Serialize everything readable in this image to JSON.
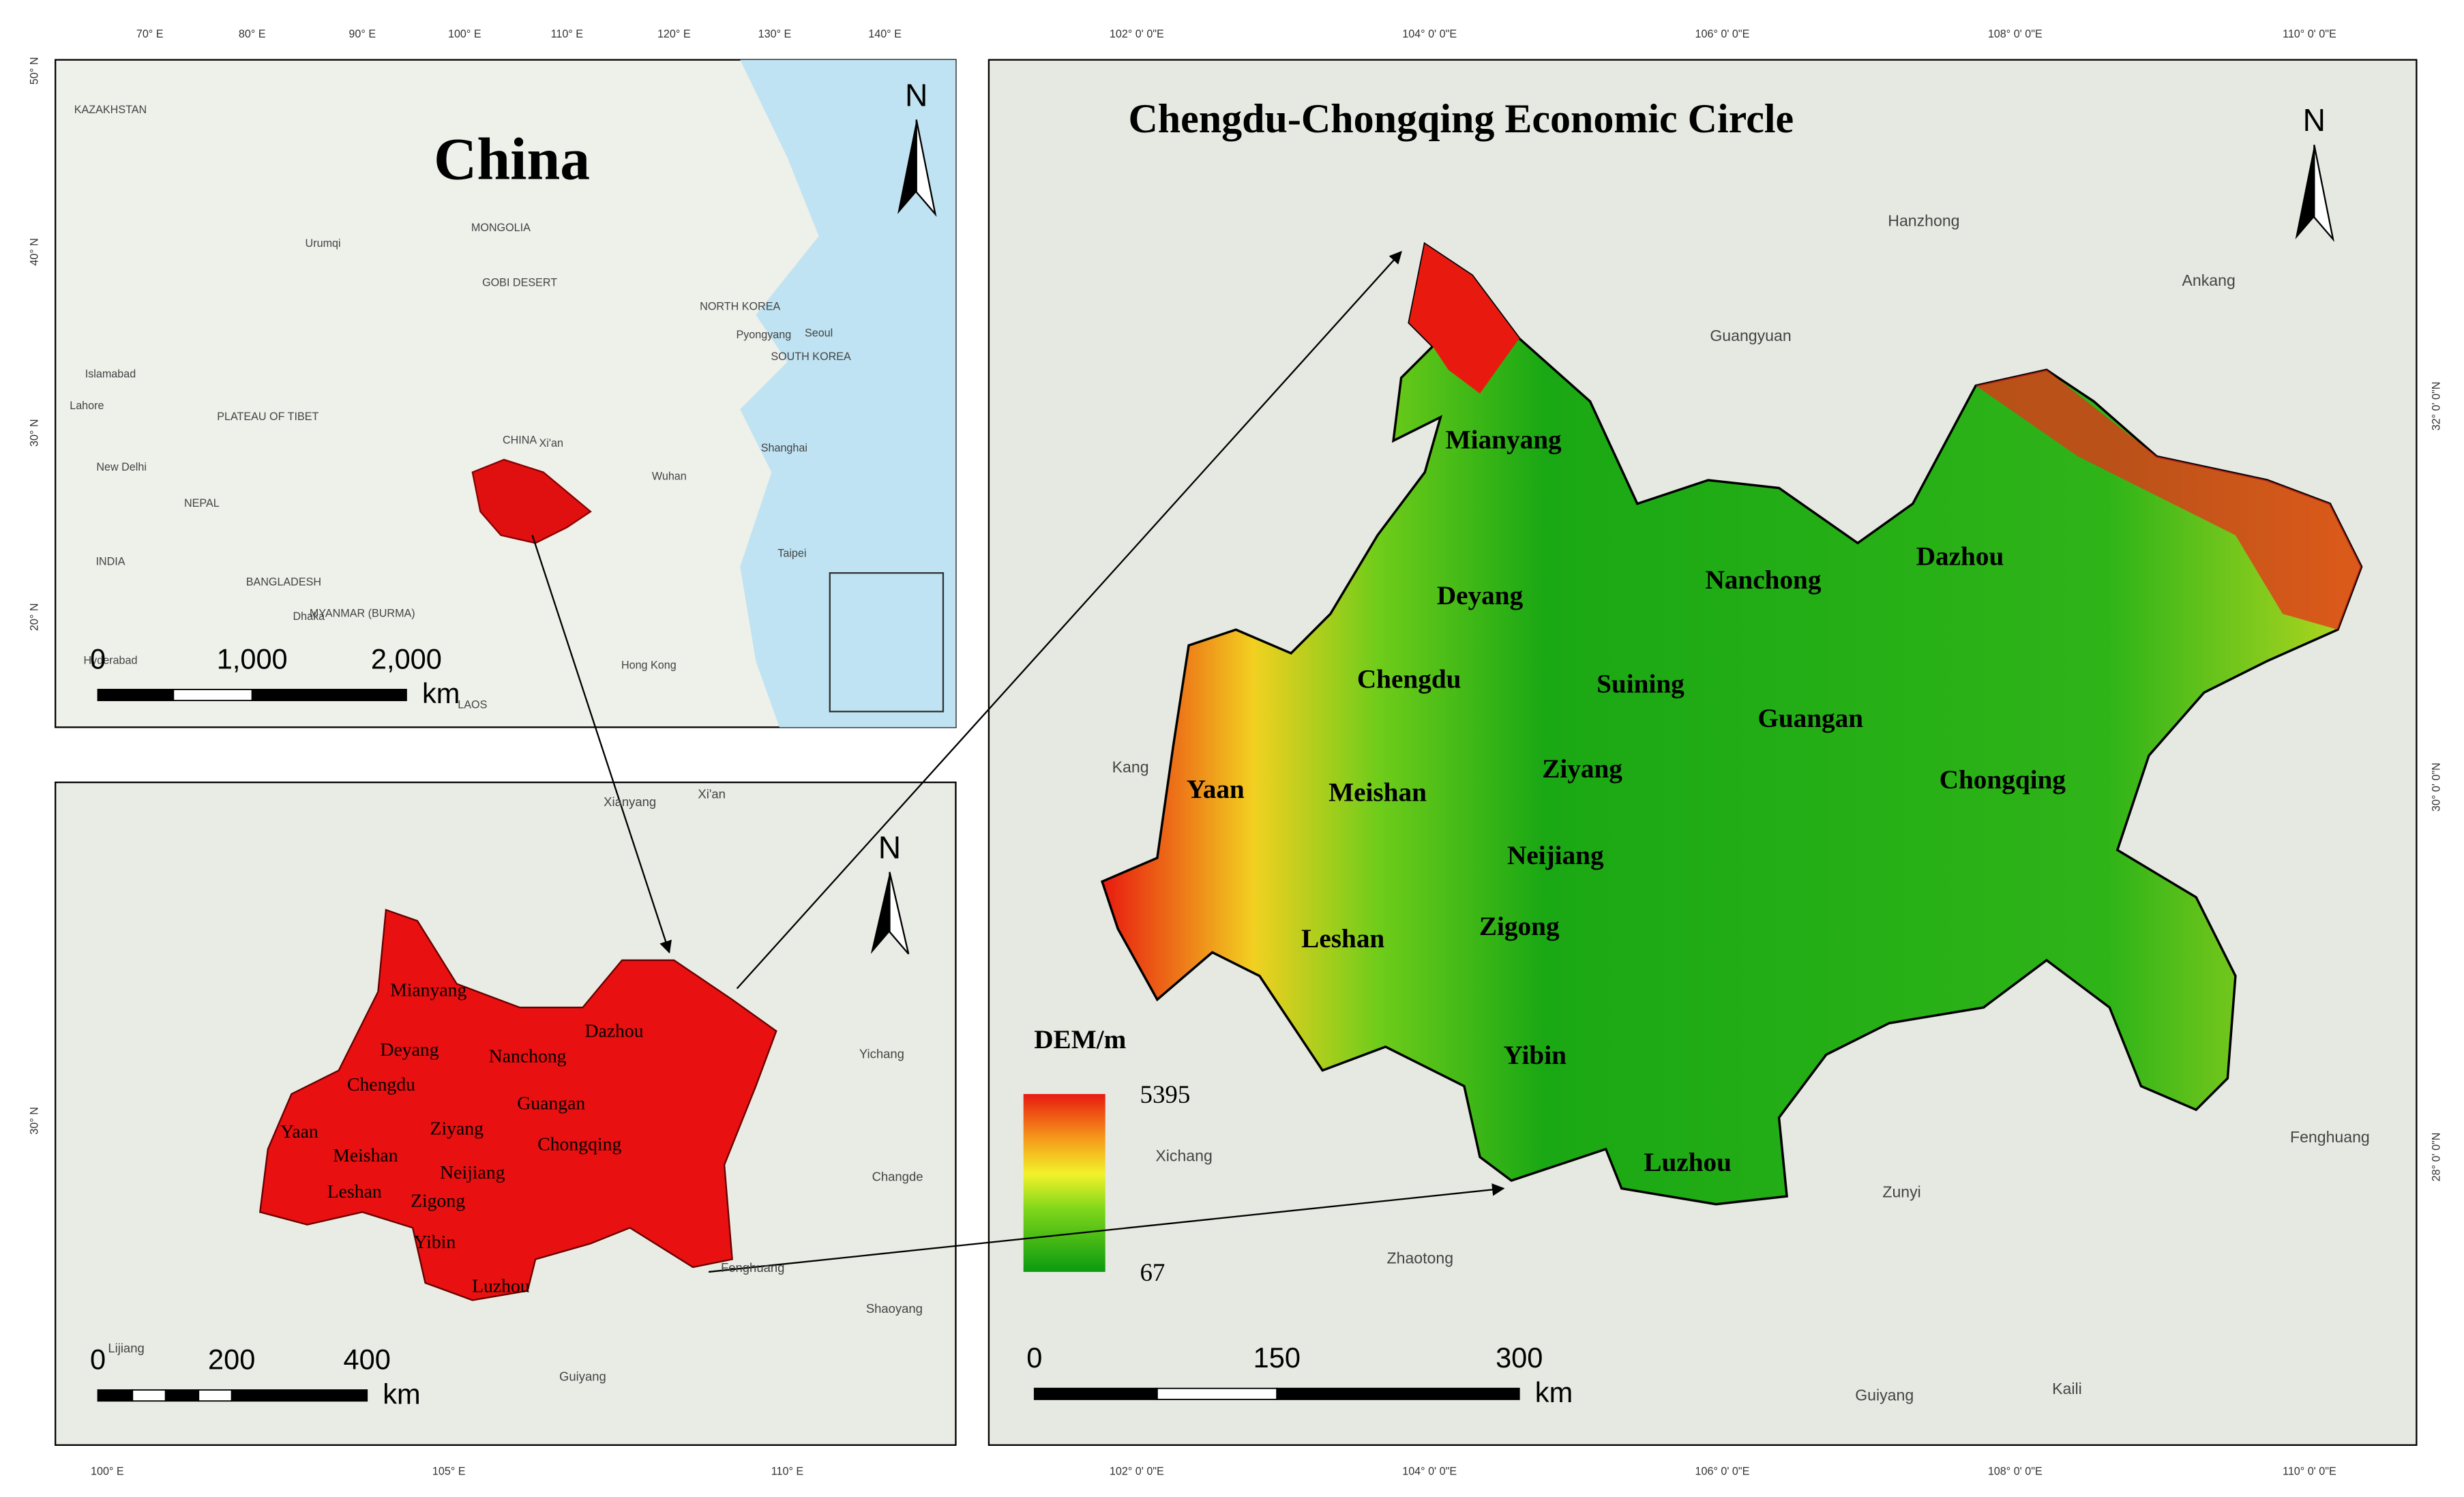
{
  "china": {
    "title": "China",
    "north": "N",
    "places": [
      "KAZAKHSTAN",
      "MONGOLIA",
      "GOBI DESERT",
      "NORTH KOREA",
      "SOUTH KOREA",
      "PLATEAU OF TIBET",
      "CHINA",
      "INDIA",
      "NEPAL",
      "BANGLADESH",
      "MYANMAR (BURMA)",
      "LAOS",
      "New Delhi",
      "Dhaka",
      "Hong Kong",
      "Taipei",
      "Shanghai",
      "Hyderabad",
      "Islamabad",
      "Lahore",
      "Urumqi",
      "Pyongyang",
      "Seoul",
      "Wuhan",
      "Xi'an"
    ],
    "scale": [
      "0",
      "1,000",
      "2,000"
    ],
    "unit": "km",
    "lon_labels": [
      "70° E",
      "80° E",
      "90° E",
      "100° E",
      "110° E",
      "120° E",
      "130° E",
      "140° E"
    ],
    "lat_labels": [
      "50° N",
      "40° N",
      "30° N",
      "20° N"
    ]
  },
  "region": {
    "north": "N",
    "cities": [
      "Mianyang",
      "Deyang",
      "Nanchong",
      "Dazhou",
      "Chengdu",
      "Guangan",
      "Yaan",
      "Ziyang",
      "Chongqing",
      "Meishan",
      "Neijiang",
      "Leshan",
      "Zigong",
      "Yibin",
      "Luzhou"
    ],
    "places": [
      "Xianyang",
      "Xi'an",
      "Yichang",
      "Changde",
      "Fenghuang",
      "Shaoyang",
      "Lijiang",
      "Guiyang"
    ],
    "scale": [
      "0",
      "200",
      "400"
    ],
    "unit": "km",
    "lon_labels": [
      "100° E",
      "105° E",
      "110° E"
    ],
    "lat_labels": [
      "30° N"
    ]
  },
  "main": {
    "title": "Chengdu-Chongqing Economic Circle",
    "north": "N",
    "cities": [
      "Mianyang",
      "Deyang",
      "Nanchong",
      "Dazhou",
      "Chengdu",
      "Suining",
      "Guangan",
      "Yaan",
      "Meishan",
      "Ziyang",
      "Chongqing",
      "Neijiang",
      "Leshan",
      "Zigong",
      "Yibin",
      "Luzhou"
    ],
    "places": [
      "Hanzhong",
      "Ankang",
      "Guangyuan",
      "Kang",
      "Xichang",
      "Fenghuang",
      "Zunyi",
      "Zhaotong",
      "Guiyang",
      "Kaili"
    ],
    "legend": {
      "title": "DEM/m",
      "max": "5395",
      "min": "67"
    },
    "scale": [
      "0",
      "150",
      "300"
    ],
    "unit": "km",
    "lon_labels": [
      "102° 0' 0\"E",
      "104° 0' 0\"E",
      "106° 0' 0\"E",
      "108° 0' 0\"E",
      "110° 0' 0\"E"
    ],
    "lat_labels": [
      "32° 0' 0\"N",
      "30° 0' 0\"N",
      "28° 0' 0\"N"
    ]
  }
}
